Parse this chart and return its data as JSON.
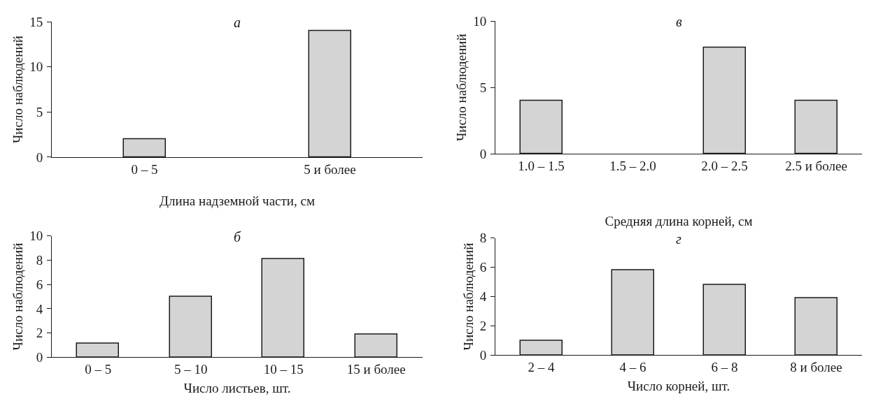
{
  "chart_data": [
    {
      "type": "bar",
      "title": "а",
      "xlabel": "Длина надземной части, см",
      "ylabel": "Число наблюдений",
      "categories": [
        "0 – 5",
        "5 и более"
      ],
      "values": [
        2,
        14
      ],
      "color": "#d4d4d4",
      "ylim": [
        0,
        15
      ],
      "yticks": [
        0,
        5,
        10,
        15
      ]
    },
    {
      "type": "bar",
      "title": "в",
      "xlabel": "Средняя длина корней, см",
      "ylabel": "Число наблюдений",
      "categories": [
        "1.0 – 1.5",
        "1.5 – 2.0",
        "2.0 – 2.5",
        "2.5 и более"
      ],
      "values": [
        4,
        0,
        8,
        4
      ],
      "color": "#d4d4d4",
      "ylim": [
        0,
        10
      ],
      "yticks": [
        0,
        5,
        10
      ]
    },
    {
      "type": "bar",
      "title": "б",
      "xlabel": "Число листьев, шт.",
      "ylabel": "Число наблюдений",
      "categories": [
        "0 – 5",
        "5 – 10",
        "10 – 15",
        "15 и более"
      ],
      "values": [
        1.1,
        5.0,
        8.1,
        1.9
      ],
      "color": "#d4d4d4",
      "ylim": [
        0,
        10
      ],
      "yticks": [
        0,
        2,
        4,
        6,
        8,
        10
      ]
    },
    {
      "type": "bar",
      "title": "г",
      "xlabel": "Число корней, шт.",
      "ylabel": "Число наблюдений",
      "categories": [
        "2 – 4",
        "4 – 6",
        "6 – 8",
        "8 и более"
      ],
      "values": [
        1.0,
        5.8,
        4.8,
        3.9
      ],
      "color": "#d4d4d4",
      "ylim": [
        0,
        8
      ],
      "yticks": [
        0,
        2,
        4,
        6,
        8
      ]
    }
  ]
}
